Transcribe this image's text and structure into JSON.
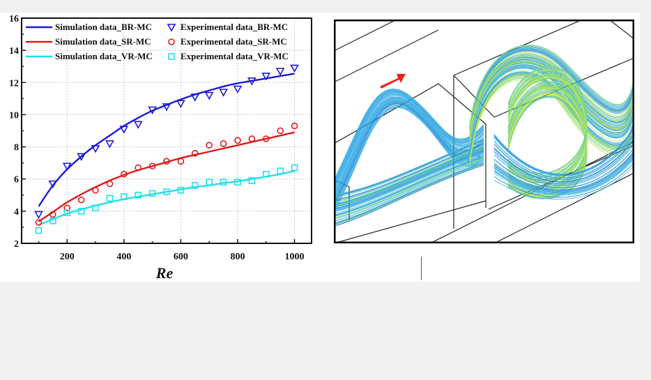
{
  "chart_data": {
    "type": "line",
    "xlabel": "Re",
    "ylabel": "",
    "xlim": [
      40,
      1060
    ],
    "ylim": [
      2,
      16
    ],
    "xticks": [
      200,
      400,
      600,
      800,
      1000
    ],
    "yticks": [
      2,
      4,
      6,
      8,
      10,
      12,
      14,
      16
    ],
    "grid": true,
    "legend_placement": "top-left",
    "series": [
      {
        "name": "Simulation data_BR-MC",
        "kind": "line",
        "color": "#1a1ad6",
        "x": [
          100,
          150,
          200,
          250,
          300,
          350,
          400,
          450,
          500,
          550,
          600,
          650,
          700,
          750,
          800,
          850,
          900,
          950,
          1000
        ],
        "values": [
          4.3,
          5.6,
          6.6,
          7.4,
          8.1,
          8.7,
          9.3,
          9.8,
          10.25,
          10.6,
          10.95,
          11.25,
          11.5,
          11.75,
          11.95,
          12.1,
          12.25,
          12.4,
          12.55
        ]
      },
      {
        "name": "Simulation data_SR-MC",
        "kind": "line",
        "color": "#e01818",
        "x": [
          100,
          150,
          200,
          250,
          300,
          350,
          400,
          450,
          500,
          550,
          600,
          650,
          700,
          750,
          800,
          850,
          900,
          950,
          1000
        ],
        "values": [
          3.35,
          3.95,
          4.55,
          5.05,
          5.5,
          5.9,
          6.25,
          6.55,
          6.8,
          7.05,
          7.3,
          7.5,
          7.7,
          7.9,
          8.1,
          8.3,
          8.5,
          8.7,
          8.9
        ]
      },
      {
        "name": "Simulation data_VR-MC",
        "kind": "line",
        "color": "#22e0e6",
        "x": [
          100,
          150,
          200,
          250,
          300,
          350,
          400,
          450,
          500,
          550,
          600,
          650,
          700,
          750,
          800,
          850,
          900,
          950,
          1000
        ],
        "values": [
          3.15,
          3.5,
          3.85,
          4.1,
          4.35,
          4.55,
          4.75,
          4.9,
          5.05,
          5.2,
          5.35,
          5.5,
          5.6,
          5.75,
          5.85,
          6.0,
          6.15,
          6.3,
          6.5
        ]
      },
      {
        "name": "Experimental data_BR-MC",
        "kind": "scatter",
        "marker": "triangle-down",
        "color": "#1a1ad6",
        "x": [
          100,
          150,
          200,
          250,
          300,
          350,
          400,
          450,
          500,
          550,
          600,
          650,
          700,
          750,
          800,
          850,
          900,
          950,
          1000
        ],
        "values": [
          3.8,
          5.7,
          6.8,
          7.4,
          7.9,
          8.2,
          9.1,
          9.4,
          10.3,
          10.5,
          10.7,
          11.1,
          11.2,
          11.4,
          11.6,
          12.1,
          12.4,
          12.7,
          12.9
        ]
      },
      {
        "name": "Experimental data_SR-MC",
        "kind": "scatter",
        "marker": "circle",
        "color": "#e01818",
        "x": [
          100,
          150,
          200,
          250,
          300,
          350,
          400,
          450,
          500,
          550,
          600,
          650,
          700,
          750,
          800,
          850,
          900,
          950,
          1000
        ],
        "values": [
          3.3,
          3.8,
          4.2,
          4.7,
          5.3,
          5.7,
          6.3,
          6.7,
          6.8,
          7.1,
          7.1,
          7.6,
          8.1,
          8.2,
          8.4,
          8.5,
          8.5,
          9.0,
          9.3
        ]
      },
      {
        "name": "Experimental data_VR-MC",
        "kind": "scatter",
        "marker": "square",
        "color": "#22e0e6",
        "x": [
          100,
          150,
          200,
          250,
          300,
          350,
          400,
          450,
          500,
          550,
          600,
          650,
          700,
          750,
          800,
          850,
          900,
          950,
          1000
        ],
        "values": [
          2.8,
          3.4,
          3.9,
          4.0,
          4.2,
          4.8,
          4.9,
          5.0,
          5.1,
          5.2,
          5.3,
          5.6,
          5.8,
          5.8,
          5.8,
          5.9,
          6.3,
          6.5,
          6.7
        ]
      }
    ],
    "legend_left": [
      "Simulation data_BR-MC",
      "Simulation data_SR-MC",
      "Simulation data_VR-MC"
    ],
    "legend_right": [
      "Experimental data_BR-MC",
      "Experimental data_SR-MC",
      "Experimental data_VR-MC"
    ]
  },
  "flow_panel": {
    "description_icon": "flow-direction-arrow-icon",
    "arrow_color": "#e8231d",
    "frame_color": "#000000"
  }
}
